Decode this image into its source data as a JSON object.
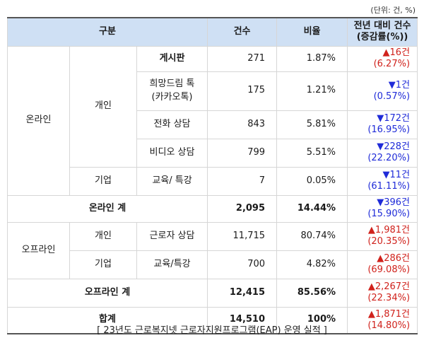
{
  "unit_note": "(단위: 건, %)",
  "headers": {
    "category": "구분",
    "count": "건수",
    "ratio": "비율",
    "yoy_line1": "전년 대비 건수",
    "yoy_line2": "(증감률(%))"
  },
  "labels": {
    "online": "온라인",
    "offline": "오프라인",
    "individual": "개인",
    "corporate": "기업"
  },
  "rows": [
    {
      "name": "게시판",
      "count": "271",
      "ratio": "1.87%",
      "change": "▲16건",
      "rate": "(6.27%)",
      "dir": "up"
    },
    {
      "name": "희망드림 톡",
      "name2": "(카카오톡)",
      "count": "175",
      "ratio": "1.21%",
      "change": "▼1건",
      "rate": "(0.57%)",
      "dir": "down"
    },
    {
      "name": "전화 상담",
      "count": "843",
      "ratio": "5.81%",
      "change": "▼172건",
      "rate": "(16.95%)",
      "dir": "down"
    },
    {
      "name": "비디오 상담",
      "count": "799",
      "ratio": "5.51%",
      "change": "▼228건",
      "rate": "(22.20%)",
      "dir": "down"
    },
    {
      "name": "교육/ 특강",
      "count": "7",
      "ratio": "0.05%",
      "change": "▼11건",
      "rate": "(61.11%)",
      "dir": "down"
    },
    {
      "name": "온라인 계",
      "count": "2,095",
      "ratio": "14.44%",
      "change": "▼396건",
      "rate": "(15.90%)",
      "dir": "down"
    },
    {
      "name": "근로자 상담",
      "count": "11,715",
      "ratio": "80.74%",
      "change": "▲1,981건",
      "rate": "(20.35%)",
      "dir": "up"
    },
    {
      "name": "교육/특강",
      "count": "700",
      "ratio": "4.82%",
      "change": "▲286건",
      "rate": "(69.08%)",
      "dir": "up"
    },
    {
      "name": "오프라인 계",
      "count": "12,415",
      "ratio": "85.56%",
      "change": "▲2,267건",
      "rate": "(22.34%)",
      "dir": "up"
    },
    {
      "name": "합계",
      "count": "14,510",
      "ratio": "100%",
      "change": "▲1,871건",
      "rate": "(14.80%)",
      "dir": "up"
    }
  ],
  "colors": {
    "header_bg": "#cfe0f4",
    "increase": "#d0221c",
    "decrease": "#1f2bd8"
  },
  "caption": "[ 23년도 근로복지넷 근로자지원프로그램(EAP) 운영 실적 ]"
}
